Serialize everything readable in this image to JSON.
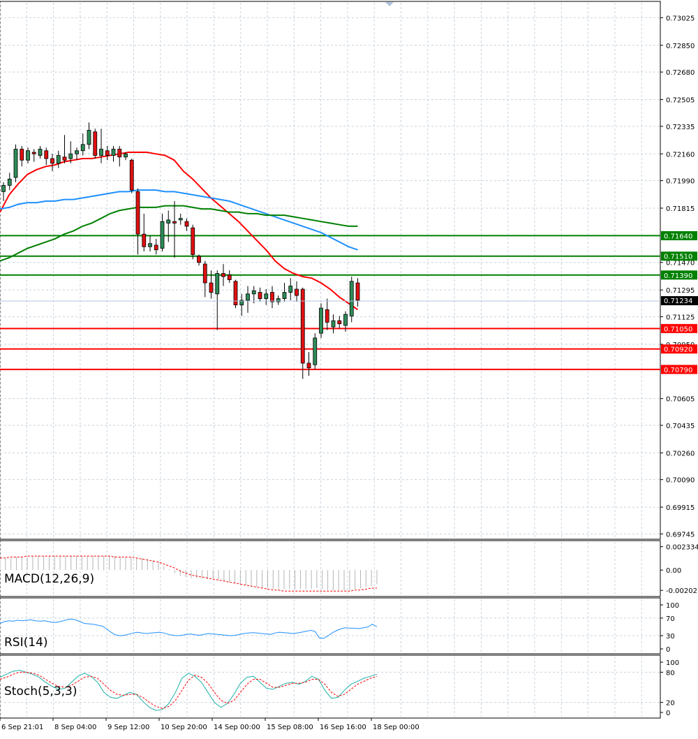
{
  "chart_data": [
    {
      "type": "candlestick",
      "title": "",
      "price_axis_ticks": [
        "0.73025",
        "0.72850",
        "0.72680",
        "0.72505",
        "0.72335",
        "0.72160",
        "0.71990",
        "0.71815",
        "0.71470",
        "0.71295",
        "0.71125",
        "0.70950",
        "0.70605",
        "0.70435",
        "0.70260",
        "0.70090",
        "0.69915",
        "0.69745"
      ],
      "price_ylim": [
        0.6972,
        0.7312
      ],
      "current_price": "0.71234",
      "x_tick_labels": [
        "6 Sep 21:01",
        "8 Sep 04:00",
        "9 Sep 12:00",
        "10 Sep 20:00",
        "14 Sep 00:00",
        "15 Sep 08:00",
        "16 Sep 16:00",
        "18 Sep 00:00"
      ],
      "horizontal_levels": [
        {
          "value": 0.7164,
          "label": "0.71640",
          "color": "#008000"
        },
        {
          "value": 0.7151,
          "label": "0.71510",
          "color": "#008000"
        },
        {
          "value": 0.7139,
          "label": "0.71390",
          "color": "#008000"
        },
        {
          "value": 0.7105,
          "label": "0.71050",
          "color": "#ff0000"
        },
        {
          "value": 0.7092,
          "label": "0.70920",
          "color": "#ff0000"
        },
        {
          "value": 0.7079,
          "label": "0.70790",
          "color": "#ff0000"
        }
      ],
      "candles": [
        {
          "o": 0.7192,
          "h": 0.7198,
          "l": 0.7186,
          "c": 0.7196
        },
        {
          "o": 0.7196,
          "h": 0.7204,
          "l": 0.7193,
          "c": 0.72
        },
        {
          "o": 0.7201,
          "h": 0.7222,
          "l": 0.7198,
          "c": 0.7219
        },
        {
          "o": 0.7219,
          "h": 0.7221,
          "l": 0.7208,
          "c": 0.7212
        },
        {
          "o": 0.7212,
          "h": 0.722,
          "l": 0.721,
          "c": 0.7218
        },
        {
          "o": 0.7217,
          "h": 0.7219,
          "l": 0.7211,
          "c": 0.7216
        },
        {
          "o": 0.7215,
          "h": 0.7221,
          "l": 0.7213,
          "c": 0.7219
        },
        {
          "o": 0.7218,
          "h": 0.722,
          "l": 0.7209,
          "c": 0.7213
        },
        {
          "o": 0.7213,
          "h": 0.7216,
          "l": 0.7205,
          "c": 0.721
        },
        {
          "o": 0.721,
          "h": 0.7218,
          "l": 0.7207,
          "c": 0.7215
        },
        {
          "o": 0.7214,
          "h": 0.7228,
          "l": 0.721,
          "c": 0.7212
        },
        {
          "o": 0.7213,
          "h": 0.7224,
          "l": 0.721,
          "c": 0.7216
        },
        {
          "o": 0.7216,
          "h": 0.722,
          "l": 0.7212,
          "c": 0.7218
        },
        {
          "o": 0.7218,
          "h": 0.7229,
          "l": 0.7215,
          "c": 0.7222
        },
        {
          "o": 0.7222,
          "h": 0.7236,
          "l": 0.7219,
          "c": 0.7231
        },
        {
          "o": 0.723,
          "h": 0.7232,
          "l": 0.7213,
          "c": 0.7215
        },
        {
          "o": 0.7215,
          "h": 0.7232,
          "l": 0.721,
          "c": 0.7219
        },
        {
          "o": 0.7218,
          "h": 0.7221,
          "l": 0.7212,
          "c": 0.7215
        },
        {
          "o": 0.7215,
          "h": 0.7221,
          "l": 0.7211,
          "c": 0.7219
        },
        {
          "o": 0.7219,
          "h": 0.7221,
          "l": 0.7208,
          "c": 0.7214
        },
        {
          "o": 0.7214,
          "h": 0.7217,
          "l": 0.7212,
          "c": 0.7216
        },
        {
          "o": 0.7212,
          "h": 0.7213,
          "l": 0.7191,
          "c": 0.7193
        },
        {
          "o": 0.7192,
          "h": 0.7194,
          "l": 0.7152,
          "c": 0.7165
        },
        {
          "o": 0.7165,
          "h": 0.7178,
          "l": 0.7154,
          "c": 0.7157
        },
        {
          "o": 0.7157,
          "h": 0.7164,
          "l": 0.7154,
          "c": 0.7159
        },
        {
          "o": 0.7158,
          "h": 0.7162,
          "l": 0.7152,
          "c": 0.7155
        },
        {
          "o": 0.7156,
          "h": 0.7178,
          "l": 0.7154,
          "c": 0.7173
        },
        {
          "o": 0.7172,
          "h": 0.718,
          "l": 0.716,
          "c": 0.7174
        },
        {
          "o": 0.7173,
          "h": 0.7186,
          "l": 0.715,
          "c": 0.7172
        },
        {
          "o": 0.7174,
          "h": 0.7178,
          "l": 0.7171,
          "c": 0.7175
        },
        {
          "o": 0.7173,
          "h": 0.7175,
          "l": 0.7167,
          "c": 0.717
        },
        {
          "o": 0.7169,
          "h": 0.7171,
          "l": 0.7149,
          "c": 0.7152
        },
        {
          "o": 0.7151,
          "h": 0.7152,
          "l": 0.7145,
          "c": 0.7147
        },
        {
          "o": 0.7146,
          "h": 0.7148,
          "l": 0.7125,
          "c": 0.7134
        },
        {
          "o": 0.7134,
          "h": 0.7142,
          "l": 0.7124,
          "c": 0.7128
        },
        {
          "o": 0.7127,
          "h": 0.7142,
          "l": 0.7104,
          "c": 0.714
        },
        {
          "o": 0.714,
          "h": 0.7146,
          "l": 0.7132,
          "c": 0.7138
        },
        {
          "o": 0.7139,
          "h": 0.7142,
          "l": 0.7134,
          "c": 0.7136
        },
        {
          "o": 0.7135,
          "h": 0.7136,
          "l": 0.7118,
          "c": 0.712
        },
        {
          "o": 0.712,
          "h": 0.7127,
          "l": 0.7113,
          "c": 0.7123
        },
        {
          "o": 0.7123,
          "h": 0.7132,
          "l": 0.7115,
          "c": 0.7127
        },
        {
          "o": 0.7127,
          "h": 0.7132,
          "l": 0.7121,
          "c": 0.7129
        },
        {
          "o": 0.7128,
          "h": 0.7131,
          "l": 0.7122,
          "c": 0.7124
        },
        {
          "o": 0.7124,
          "h": 0.713,
          "l": 0.712,
          "c": 0.7127
        },
        {
          "o": 0.7128,
          "h": 0.7132,
          "l": 0.7118,
          "c": 0.7122
        },
        {
          "o": 0.7122,
          "h": 0.7126,
          "l": 0.712,
          "c": 0.7124
        },
        {
          "o": 0.7124,
          "h": 0.7134,
          "l": 0.7122,
          "c": 0.7128
        },
        {
          "o": 0.7128,
          "h": 0.7137,
          "l": 0.7123,
          "c": 0.7132
        },
        {
          "o": 0.713,
          "h": 0.7135,
          "l": 0.7122,
          "c": 0.7126
        },
        {
          "o": 0.713,
          "h": 0.7131,
          "l": 0.7073,
          "c": 0.7083
        },
        {
          "o": 0.7083,
          "h": 0.709,
          "l": 0.7075,
          "c": 0.708
        },
        {
          "o": 0.7082,
          "h": 0.7102,
          "l": 0.7079,
          "c": 0.7099
        },
        {
          "o": 0.7102,
          "h": 0.7121,
          "l": 0.7099,
          "c": 0.7118
        },
        {
          "o": 0.7117,
          "h": 0.7124,
          "l": 0.7104,
          "c": 0.7109
        },
        {
          "o": 0.7106,
          "h": 0.7114,
          "l": 0.7102,
          "c": 0.711
        },
        {
          "o": 0.711,
          "h": 0.7113,
          "l": 0.7105,
          "c": 0.7108
        },
        {
          "o": 0.7107,
          "h": 0.7116,
          "l": 0.7103,
          "c": 0.7114
        },
        {
          "o": 0.7113,
          "h": 0.7138,
          "l": 0.7109,
          "c": 0.7135
        },
        {
          "o": 0.7134,
          "h": 0.7137,
          "l": 0.7119,
          "c": 0.7123
        }
      ],
      "moving_averages": [
        {
          "color": "#ff0000",
          "points": [
            0.7179,
            0.719,
            0.7197,
            0.7203,
            0.7206,
            0.7208,
            0.7209,
            0.7211,
            0.7212,
            0.7213,
            0.7213,
            0.7214,
            0.7215,
            0.7216,
            0.7217,
            0.7217,
            0.7217,
            0.7216,
            0.7215,
            0.7212,
            0.7205,
            0.72,
            0.7194,
            0.7188,
            0.7183,
            0.7178,
            0.7173,
            0.7167,
            0.7161,
            0.7155,
            0.7148,
            0.7143,
            0.714,
            0.7138,
            0.7137,
            0.7134,
            0.713,
            0.7125,
            0.7121,
            0.7117
          ]
        },
        {
          "color": "#1e90ff",
          "points": [
            0.7181,
            0.7182,
            0.7184,
            0.7185,
            0.7185,
            0.7186,
            0.7186,
            0.7187,
            0.7187,
            0.7188,
            0.7189,
            0.719,
            0.7191,
            0.7192,
            0.7192,
            0.7193,
            0.7193,
            0.7193,
            0.7192,
            0.7192,
            0.7191,
            0.719,
            0.7189,
            0.7188,
            0.7187,
            0.7186,
            0.7184,
            0.7182,
            0.718,
            0.7178,
            0.7176,
            0.7174,
            0.7172,
            0.717,
            0.7168,
            0.7166,
            0.7163,
            0.716,
            0.7157,
            0.7155
          ]
        },
        {
          "color": "#008000",
          "points": [
            0.7148,
            0.715,
            0.7153,
            0.7156,
            0.7158,
            0.716,
            0.7162,
            0.7165,
            0.7167,
            0.717,
            0.7172,
            0.7175,
            0.7178,
            0.718,
            0.7181,
            0.7182,
            0.7182,
            0.7182,
            0.7183,
            0.7183,
            0.7183,
            0.7182,
            0.7181,
            0.7181,
            0.718,
            0.7179,
            0.7179,
            0.7178,
            0.7178,
            0.7177,
            0.7177,
            0.7177,
            0.7176,
            0.7175,
            0.7174,
            0.7173,
            0.7172,
            0.7171,
            0.717,
            0.717
          ]
        }
      ]
    },
    {
      "type": "histogram",
      "label": "MACD(12,26,9)",
      "ticks": [
        "0.002334",
        "0.00",
        "-0.002027"
      ],
      "ylim": [
        -0.0025,
        0.0028
      ],
      "histogram": [
        0.0011,
        0.0012,
        0.0012,
        0.0013,
        0.0013,
        0.0013,
        0.0014,
        0.0014,
        0.0014,
        0.0014,
        0.0014,
        0.0014,
        0.0014,
        0.0014,
        0.0014,
        0.0014,
        0.0014,
        0.0014,
        0.0014,
        0.0014,
        0.0014,
        0.0014,
        0.0013,
        0.0013,
        0.0013,
        0.0012,
        0.0012,
        0.0011,
        0.001,
        0.0008,
        0.0004,
        0.0001,
        -0.0003,
        -0.0006,
        -0.0007,
        -0.0008,
        -0.0008,
        -0.0008,
        -0.0009,
        -0.0009,
        -0.001,
        -0.0011,
        -0.0012,
        -0.0013,
        -0.0014,
        -0.0015,
        -0.0016,
        -0.0017,
        -0.0018,
        -0.0018,
        -0.0019,
        -0.0019,
        -0.0019,
        -0.0019,
        -0.0019,
        -0.0019,
        -0.0019,
        -0.0019,
        -0.0018,
        -0.0019,
        -0.002,
        -0.002,
        -0.002,
        -0.002,
        -0.002,
        -0.0019,
        -0.0018,
        -0.0017,
        -0.0016,
        -0.0014
      ],
      "signal": [
        0.0012,
        0.0012,
        0.0013,
        0.0013,
        0.0013,
        0.0014,
        0.0014,
        0.0014,
        0.0014,
        0.0014,
        0.0014,
        0.0014,
        0.0014,
        0.0014,
        0.0014,
        0.0014,
        0.0014,
        0.0014,
        0.0014,
        0.0014,
        0.0014,
        0.0013,
        0.0013,
        0.0013,
        0.0013,
        0.0012,
        0.0011,
        0.001,
        0.0009,
        0.0008,
        0.0006,
        0.0004,
        0.0002,
        -0.0001,
        -0.0003,
        -0.0005,
        -0.0006,
        -0.0007,
        -0.0008,
        -0.0009,
        -0.001,
        -0.0011,
        -0.0012,
        -0.0013,
        -0.0014,
        -0.0015,
        -0.0016,
        -0.0017,
        -0.0018,
        -0.0019,
        -0.002,
        -0.002,
        -0.0021,
        -0.0021,
        -0.0021,
        -0.0021,
        -0.0021,
        -0.0021,
        -0.0021,
        -0.0021,
        -0.0021,
        -0.0021,
        -0.0021,
        -0.0021,
        -0.0021,
        -0.002,
        -0.002,
        -0.0019,
        -0.0018,
        -0.0018
      ]
    },
    {
      "type": "line",
      "label": "RSI(14)",
      "ticks": [
        "100",
        "70",
        "30",
        "0"
      ],
      "ylim": [
        0,
        100
      ],
      "series": [
        {
          "color": "#1e90ff",
          "values": [
            58,
            62,
            64,
            63,
            65,
            64,
            65,
            66,
            64,
            63,
            64,
            62,
            60,
            61,
            63,
            66,
            68,
            66,
            62,
            58,
            57,
            56,
            54,
            52,
            46,
            38,
            32,
            30,
            31,
            33,
            36,
            38,
            36,
            35,
            36,
            37,
            38,
            36,
            33,
            31,
            30,
            31,
            33,
            34,
            32,
            31,
            33,
            35,
            34,
            33,
            32,
            31,
            30,
            31,
            33,
            35,
            36,
            37,
            36,
            35,
            34,
            33,
            36,
            38,
            37,
            36,
            35,
            36,
            38,
            40,
            42,
            40,
            25,
            24,
            30,
            37,
            42,
            46,
            48,
            47,
            47,
            46,
            48,
            50,
            56,
            50
          ]
        }
      ]
    },
    {
      "type": "line",
      "label": "Stoch(5,3,3)",
      "ticks": [
        "100",
        "80",
        "20",
        "0"
      ],
      "ylim": [
        0,
        100
      ],
      "series": [
        {
          "color": "#20b2aa",
          "values": [
            70,
            76,
            82,
            84,
            80,
            76,
            70,
            60,
            52,
            46,
            48,
            60,
            72,
            78,
            72,
            60,
            40,
            30,
            28,
            34,
            40,
            36,
            22,
            10,
            4,
            6,
            18,
            40,
            68,
            78,
            72,
            60,
            40,
            20,
            10,
            18,
            36,
            58,
            70,
            72,
            60,
            48,
            46,
            52,
            58,
            60,
            56,
            62,
            72,
            66,
            44,
            28,
            30,
            44,
            56,
            62,
            68,
            72,
            76
          ]
        },
        {
          "color": "#ff0000",
          "values": [
            66,
            70,
            76,
            80,
            80,
            78,
            74,
            66,
            58,
            52,
            50,
            54,
            62,
            70,
            72,
            68,
            56,
            44,
            36,
            34,
            36,
            36,
            30,
            20,
            12,
            8,
            12,
            24,
            44,
            64,
            74,
            70,
            58,
            40,
            24,
            18,
            24,
            40,
            56,
            66,
            66,
            58,
            50,
            50,
            54,
            58,
            58,
            60,
            66,
            66,
            56,
            40,
            32,
            36,
            46,
            56,
            62,
            68,
            72
          ]
        }
      ]
    }
  ]
}
